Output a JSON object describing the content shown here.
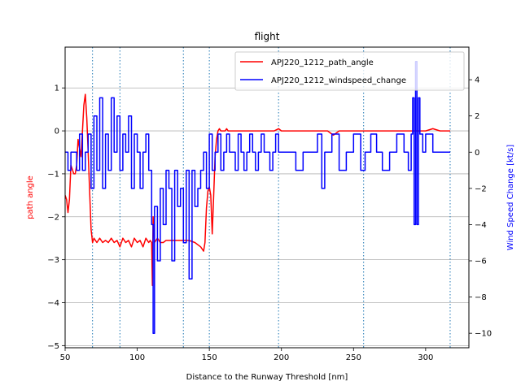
{
  "chart_data": {
    "type": "line",
    "title": "flight",
    "xlabel": "Distance to the Runway Threshold [nm]",
    "ylabel_left": "path angle",
    "ylabel_right": "Wind Speed Change [kt/s]",
    "xlim": [
      50,
      330
    ],
    "ylim_left": [
      -5.05,
      1.95
    ],
    "ylim_right": [
      -10.8,
      5.8
    ],
    "x_ticks": [
      50,
      100,
      150,
      200,
      250,
      300
    ],
    "y_ticks_left": [
      -5,
      -4,
      -3,
      -2,
      -1,
      0,
      1
    ],
    "y_ticks_right": [
      -10,
      -8,
      -6,
      -4,
      -2,
      0,
      2,
      4
    ],
    "grid": "horizontal-left",
    "legend_position": "top-right",
    "vertical_markers": [
      69,
      88,
      132,
      150,
      198,
      257,
      317
    ],
    "colors": {
      "left": "#ff0000",
      "right": "#0000ff",
      "marker": "#1f77b4",
      "grid": "#b0b0b0"
    },
    "series": [
      {
        "name": "APJ220_1212_path_angle",
        "axis": "left",
        "color": "#ff0000",
        "x": [
          50,
          51,
          52,
          53,
          54,
          55,
          56,
          57,
          58,
          59,
          60,
          61,
          62,
          63,
          64,
          65,
          66,
          67,
          68,
          69,
          70,
          72,
          74,
          76,
          78,
          80,
          82,
          84,
          86,
          88,
          90,
          92,
          94,
          96,
          98,
          100,
          102,
          104,
          106,
          108,
          109,
          110,
          110.5,
          111,
          112,
          114,
          116,
          118,
          120,
          124,
          128,
          132,
          136,
          140,
          144,
          146,
          147,
          148,
          149,
          150,
          151,
          152,
          153,
          154,
          155,
          156,
          157,
          158,
          159,
          160,
          161,
          162,
          163,
          164,
          166,
          170,
          175,
          180,
          185,
          190,
          195,
          198,
          200,
          205,
          210,
          215,
          220,
          225,
          228,
          232,
          236,
          240,
          245,
          250,
          255,
          258,
          262,
          266,
          270,
          275,
          280,
          285,
          290,
          295,
          300,
          305,
          310,
          315,
          317
        ],
        "values": [
          -1.5,
          -1.6,
          -1.9,
          -1.6,
          -0.8,
          -0.9,
          -1.0,
          -1.0,
          -0.8,
          -0.2,
          -0.4,
          -0.6,
          0.0,
          0.6,
          0.85,
          0.3,
          -0.5,
          -1.4,
          -2.3,
          -2.6,
          -2.5,
          -2.6,
          -2.5,
          -2.6,
          -2.55,
          -2.6,
          -2.5,
          -2.6,
          -2.55,
          -2.7,
          -2.5,
          -2.6,
          -2.55,
          -2.7,
          -2.5,
          -2.6,
          -2.55,
          -2.7,
          -2.5,
          -2.6,
          -2.55,
          -2.6,
          -3.6,
          -2.0,
          -2.6,
          -2.5,
          -2.6,
          -2.6,
          -2.55,
          -2.55,
          -2.55,
          -2.55,
          -2.55,
          -2.6,
          -2.7,
          -2.8,
          -2.6,
          -1.8,
          -1.4,
          -1.3,
          -1.5,
          -2.4,
          -1.5,
          -0.6,
          -0.2,
          0.0,
          0.05,
          0.0,
          0.0,
          0.0,
          0.0,
          0.05,
          0.0,
          0.0,
          0.0,
          0.0,
          0.0,
          0.0,
          0.0,
          0.0,
          0.0,
          0.05,
          0.0,
          0.0,
          0.0,
          0.0,
          0.0,
          0.0,
          0.0,
          0.0,
          -0.1,
          0.0,
          0.0,
          0.0,
          0.0,
          0.0,
          0.0,
          0.0,
          0.0,
          0.0,
          0.0,
          0.0,
          0.0,
          0.0,
          0.0,
          0.05,
          0.0,
          0.0,
          0.0
        ]
      },
      {
        "name": "APJ220_1212_windspeed_change",
        "axis": "right",
        "color": "#0000ff",
        "x": [
          50,
          52,
          54,
          56,
          58,
          60,
          62,
          64,
          66,
          68,
          70,
          72,
          74,
          76,
          78,
          80,
          82,
          84,
          86,
          88,
          90,
          92,
          94,
          96,
          98,
          100,
          102,
          104,
          106,
          108,
          110,
          111,
          112,
          114,
          116,
          118,
          120,
          122,
          124,
          126,
          128,
          130,
          132,
          134,
          136,
          138,
          140,
          142,
          144,
          146,
          148,
          150,
          152,
          154,
          156,
          158,
          160,
          162,
          164,
          166,
          168,
          170,
          172,
          174,
          176,
          178,
          180,
          182,
          184,
          186,
          188,
          190,
          192,
          194,
          196,
          198,
          200,
          205,
          210,
          215,
          220,
          225,
          228,
          230,
          235,
          240,
          245,
          250,
          255,
          258,
          262,
          266,
          270,
          275,
          280,
          285,
          288,
          290,
          291,
          292,
          293,
          294,
          295,
          296,
          298,
          300,
          305,
          310,
          315,
          317
        ],
        "values": [
          0,
          -1,
          0,
          0,
          -1,
          1,
          -1,
          0,
          1,
          -2,
          2,
          -1,
          3,
          -2,
          1,
          -1,
          3,
          0,
          2,
          -1,
          1,
          0,
          2,
          -2,
          1,
          0,
          -2,
          0,
          1,
          -1,
          -4,
          -10,
          -3,
          -6,
          -2,
          -4,
          -1,
          -2,
          -6,
          -1,
          -3,
          -2,
          -5,
          -1,
          -7,
          -1,
          -3,
          -2,
          -1,
          0,
          -2,
          1,
          -1,
          0,
          1,
          -1,
          0,
          1,
          0,
          0,
          -1,
          1,
          0,
          -1,
          0,
          1,
          0,
          -1,
          0,
          1,
          0,
          0,
          -1,
          0,
          1,
          0,
          0,
          0,
          -1,
          0,
          0,
          1,
          -2,
          0,
          1,
          -1,
          0,
          1,
          -1,
          0,
          1,
          0,
          -1,
          0,
          1,
          0,
          -1,
          1,
          3,
          -4,
          5,
          -4,
          3,
          1,
          0,
          1,
          0,
          0,
          0,
          0
        ]
      }
    ]
  }
}
